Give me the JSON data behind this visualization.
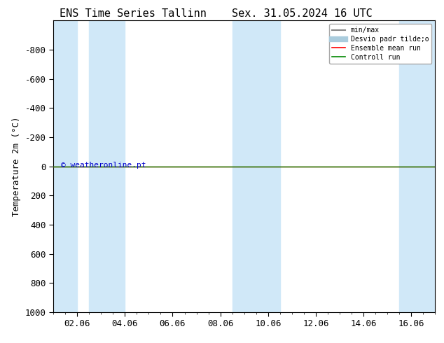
{
  "title": "ENS Time Series Tallinn",
  "title2": "Sex. 31.05.2024 16 UTC",
  "ylabel": "Temperature 2m (°C)",
  "watermark": "© weatheronline.pt",
  "watermark_color": "#0000cc",
  "ylim_bottom": 1000,
  "ylim_top": -1000,
  "yticks": [
    -800,
    -600,
    -400,
    -200,
    0,
    200,
    400,
    600,
    800,
    1000
  ],
  "x_labels": [
    "02.06",
    "04.06",
    "06.06",
    "08.06",
    "10.06",
    "12.06",
    "14.06",
    "16.06"
  ],
  "x_tick_pos": [
    1,
    3,
    5,
    7,
    9,
    11,
    13,
    15
  ],
  "xlim": [
    0,
    16
  ],
  "shaded_regions": [
    [
      0.0,
      1.0
    ],
    [
      1.5,
      3.0
    ],
    [
      7.5,
      9.5
    ],
    [
      14.5,
      16.0
    ]
  ],
  "shade_color": "#d0e8f8",
  "ensemble_mean_color": "#ff0000",
  "control_run_color": "#008800",
  "line_y_mean": 0,
  "line_y_ctrl": 0,
  "bg_color": "#ffffff",
  "legend_entries": [
    "min/max",
    "Desvio padr tilde;o",
    "Ensemble mean run",
    "Controll run"
  ],
  "legend_line_colors": [
    "#888888",
    "#aaccdd",
    "#ff0000",
    "#008800"
  ],
  "title_fontsize": 11,
  "axis_fontsize": 9,
  "tick_fontsize": 9
}
